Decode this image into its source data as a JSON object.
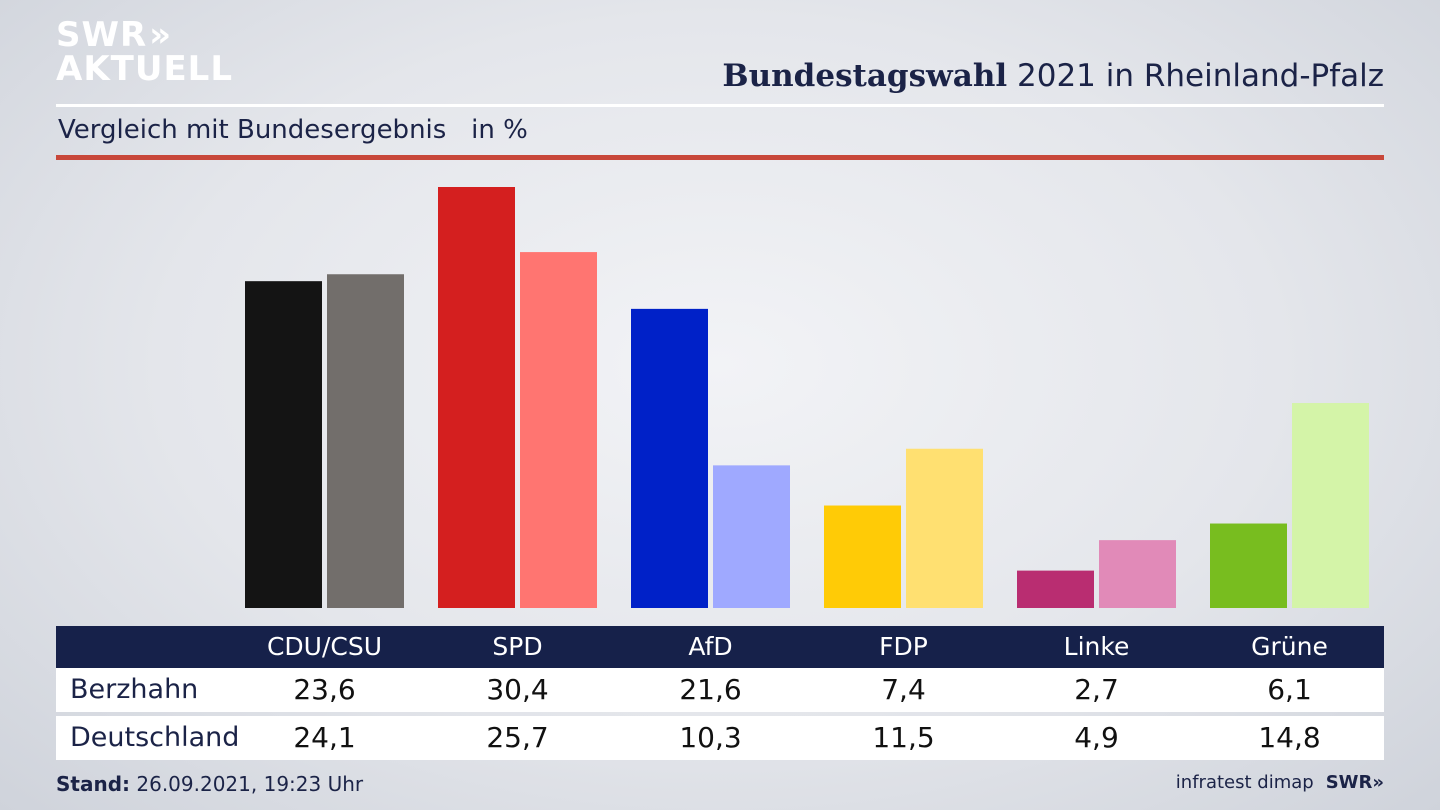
{
  "brand": {
    "line1": "SWR",
    "line2": "AKTUELL",
    "chevrons": "»"
  },
  "header": {
    "title_bold": "Bundestagswahl",
    "title_rest": " 2021 in Rheinland-Pfalz"
  },
  "subtitle": "Vergleich mit Bundesergebnis   in %",
  "chart_data": {
    "type": "bar",
    "categories": [
      "CDU/CSU",
      "SPD",
      "AfD",
      "FDP",
      "Linke",
      "Grüne"
    ],
    "series": [
      {
        "name": "Berzhahn",
        "values": [
          23.6,
          30.4,
          21.6,
          7.4,
          2.7,
          6.1
        ]
      },
      {
        "name": "Deutschland",
        "values": [
          24.1,
          25.7,
          10.3,
          11.5,
          4.9,
          14.8
        ]
      }
    ],
    "colors": {
      "Berzhahn": [
        "#141414",
        "#d41f1f",
        "#0021c8",
        "#ffcb06",
        "#b92d71",
        "#78bd1f"
      ],
      "Deutschland": [
        "#726e6b",
        "#ff7571",
        "#9fa9ff",
        "#ffe071",
        "#e18ab8",
        "#d4f4a8"
      ]
    },
    "ylim": [
      0,
      30.4
    ],
    "title": "",
    "xlabel": "",
    "ylabel": ""
  },
  "table": {
    "rows": [
      {
        "label": "Berzhahn",
        "values": [
          "23,6",
          "30,4",
          "21,6",
          "7,4",
          "2,7",
          "6,1"
        ]
      },
      {
        "label": "Deutschland",
        "values": [
          "24,1",
          "25,7",
          "10,3",
          "11,5",
          "4,9",
          "14,8"
        ]
      }
    ]
  },
  "footer": {
    "stand_label": "Stand:",
    "stand_value": " 26.09.2021, 19:23 Uhr",
    "source": "infratest dimap",
    "logo": "SWR»"
  }
}
